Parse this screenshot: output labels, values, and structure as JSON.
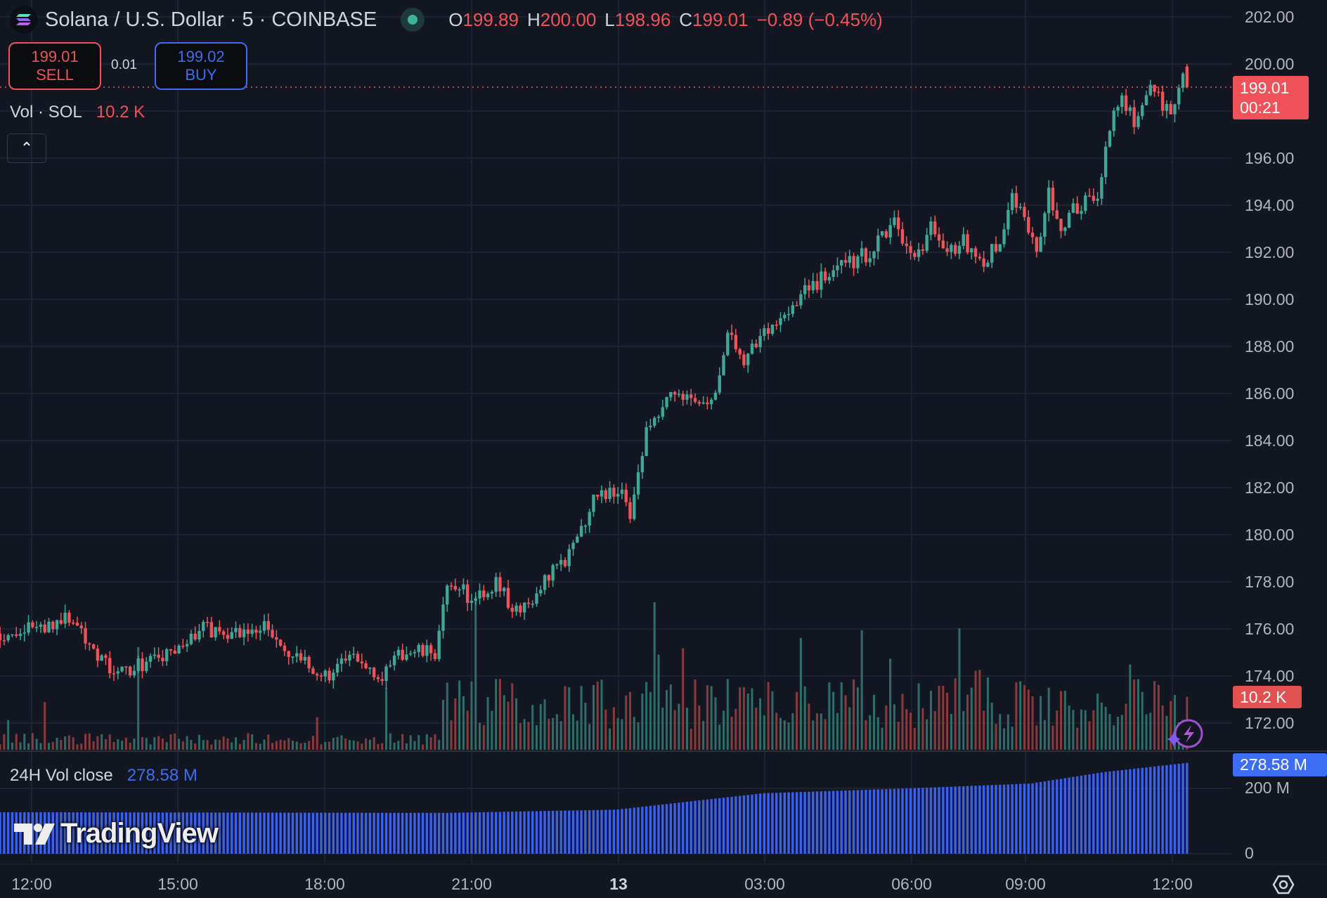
{
  "header": {
    "symbol_title": "Solana / U.S. Dollar · 5 · COINBASE",
    "ohlc": [
      {
        "key": "O",
        "value": "199.89"
      },
      {
        "key": "H",
        "value": "200.00"
      },
      {
        "key": "L",
        "value": "198.96"
      },
      {
        "key": "C",
        "value": "199.01"
      }
    ],
    "change": "−0.89 (−0.45%)"
  },
  "trade": {
    "sell_price": "199.01",
    "sell_label": "SELL",
    "spread": "0.01",
    "buy_price": "199.02",
    "buy_label": "BUY"
  },
  "volume_legend": {
    "label": "Vol · SOL",
    "value": "10.2 K"
  },
  "vol24_legend": {
    "label": "24H Vol close",
    "value": "278.58 M"
  },
  "collapse_glyph": "⌃",
  "logo_text": "TradingView",
  "tags": {
    "last_price": "199.01",
    "countdown": "00:21",
    "volume": "10.2 K",
    "vol24": "278.58 M"
  },
  "colors": {
    "up": "#3fa796",
    "down": "#f0525a",
    "vol_up": "#2e6e66",
    "vol_down": "#8a3a3c",
    "vol24": "#3b5ff0",
    "bg": "#131722",
    "grid": "#1e2330"
  },
  "chart_data": {
    "type": "candlestick",
    "symbol": "SOLUSD",
    "interval_minutes": 5,
    "price_axis_ticks": [
      "202.00",
      "200.00",
      "196.00",
      "194.00",
      "192.00",
      "190.00",
      "188.00",
      "186.00",
      "184.00",
      "182.00",
      "180.00",
      "178.00",
      "176.00",
      "174.00",
      "172.00"
    ],
    "price_tick_values": [
      202,
      200,
      196,
      194,
      192,
      190,
      188,
      186,
      184,
      182,
      180,
      178,
      176,
      174,
      172
    ],
    "vol24_axis_ticks": [
      "200 M",
      "0"
    ],
    "time_axis_ticks": [
      "12:00",
      "15:00",
      "18:00",
      "21:00",
      "13",
      "03:00",
      "06:00",
      "09:00",
      "12:00"
    ],
    "last_candle": {
      "open": 199.89,
      "high": 200.0,
      "low": 198.96,
      "close": 199.01,
      "volume_k": 10.2
    },
    "close_path_hours_price": [
      [
        -0.64,
        175.8
      ],
      [
        0,
        176
      ],
      [
        0.83,
        176.5
      ],
      [
        1.7,
        174
      ],
      [
        2.22,
        174.5
      ],
      [
        3,
        175
      ],
      [
        3.43,
        176
      ],
      [
        4.56,
        175.8
      ],
      [
        4.73,
        176.3
      ],
      [
        5.17,
        175
      ],
      [
        6,
        174
      ],
      [
        6.64,
        174.8
      ],
      [
        7.25,
        174
      ],
      [
        7.6,
        175
      ],
      [
        8.29,
        175
      ],
      [
        8.5,
        177.5
      ],
      [
        8.8,
        178
      ],
      [
        9,
        177
      ],
      [
        9.6,
        178
      ],
      [
        9.85,
        176.5
      ],
      [
        10.46,
        177.8
      ],
      [
        11.15,
        179.5
      ],
      [
        11.5,
        181.5
      ],
      [
        12,
        182
      ],
      [
        12.28,
        181
      ],
      [
        12.62,
        184.5
      ],
      [
        13.06,
        186
      ],
      [
        13.5,
        186
      ],
      [
        13.92,
        185.5
      ],
      [
        14.3,
        188.5
      ],
      [
        14.6,
        187.5
      ],
      [
        15,
        188.5
      ],
      [
        15.66,
        190
      ],
      [
        16.27,
        191
      ],
      [
        16.7,
        191.5
      ],
      [
        17.2,
        192
      ],
      [
        17.7,
        193.5
      ],
      [
        18.1,
        191.5
      ],
      [
        18.43,
        193
      ],
      [
        18.78,
        192
      ],
      [
        19.13,
        192.5
      ],
      [
        19.47,
        191.5
      ],
      [
        19.9,
        192.5
      ],
      [
        20.08,
        194.5
      ],
      [
        20.37,
        193.5
      ],
      [
        20.6,
        192
      ],
      [
        20.86,
        194.5
      ],
      [
        21.12,
        193.2
      ],
      [
        21.47,
        194
      ],
      [
        21.9,
        194.5
      ],
      [
        22.07,
        197
      ],
      [
        22.33,
        198.8
      ],
      [
        22.6,
        197.5
      ],
      [
        22.86,
        199
      ],
      [
        23.1,
        198.8
      ],
      [
        23.37,
        197.5
      ],
      [
        23.63,
        199.8
      ],
      [
        23.72,
        199.89
      ]
    ],
    "vol24_path_hours_millions": [
      [
        -0.64,
        127
      ],
      [
        8.5,
        125
      ],
      [
        12,
        135
      ],
      [
        15,
        185
      ],
      [
        18,
        200
      ],
      [
        20.5,
        215
      ],
      [
        22,
        250
      ],
      [
        23.72,
        278.58
      ]
    ]
  }
}
